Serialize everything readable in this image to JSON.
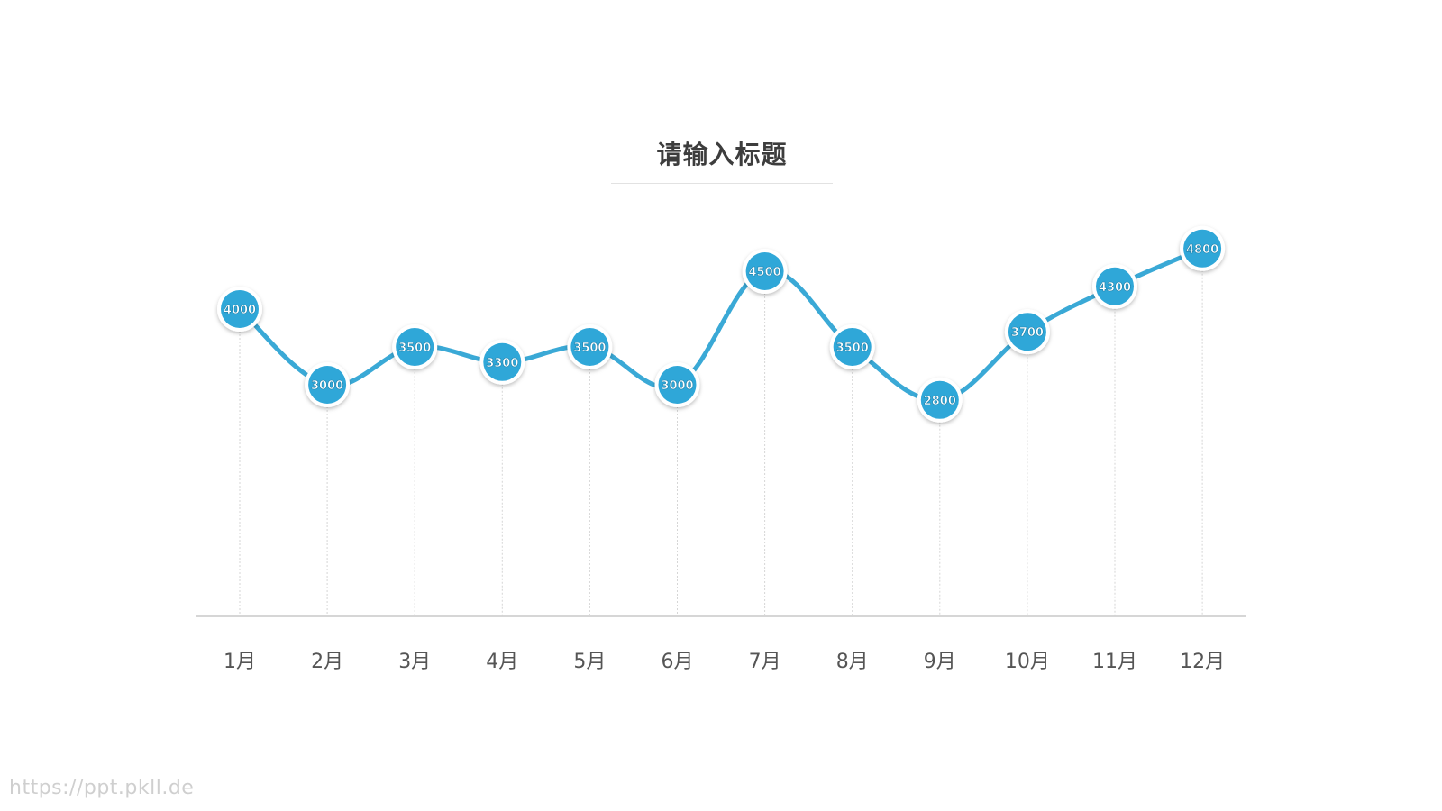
{
  "colors": {
    "line": "#3aa9d6",
    "marker_fill": "#2fa7d8",
    "marker_ring": "#ffffff",
    "axis": "#c8c8c8",
    "guide": "#d6d6d6",
    "label_text": "#555555",
    "value_text": "#ffffff"
  },
  "chart_data": {
    "type": "line",
    "title": "请输入标题",
    "categories": [
      "1月",
      "2月",
      "3月",
      "4月",
      "5月",
      "6月",
      "7月",
      "8月",
      "9月",
      "10月",
      "11月",
      "12月"
    ],
    "series": [
      {
        "values": [
          4000,
          3000,
          3500,
          3300,
          3500,
          3000,
          4500,
          3500,
          2800,
          3700,
          4300,
          4800
        ]
      }
    ],
    "xlabel": "",
    "ylabel": "",
    "ylim": [
      0,
      4800
    ],
    "grid": false,
    "legend": "none",
    "data_labels": true,
    "smooth": true
  },
  "watermark": "https://ppt.pkll.de"
}
